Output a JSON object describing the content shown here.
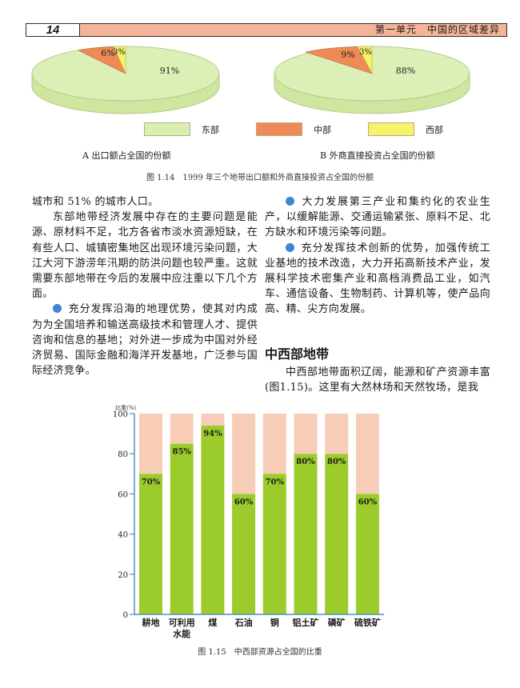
{
  "header": {
    "page_number": "14",
    "unit_title": "第一单元　中国的区域差异"
  },
  "figure_1_14": {
    "legend": [
      {
        "label": "东部",
        "color": "#d9efb0"
      },
      {
        "label": "中部",
        "color": "#ee8a55"
      },
      {
        "label": "西部",
        "color": "#f6f26a"
      }
    ],
    "caption_a": "A 出口额占全国的份额",
    "caption_b": "B 外商直接投资占全国的份额",
    "caption": "图 1.14　1999 年三个地带出口额和外商直接投资占全国的份额"
  },
  "chart_data": [
    {
      "type": "pie",
      "title": "A 出口额占全国的份额",
      "categories": [
        "东部",
        "中部",
        "西部"
      ],
      "values": [
        91,
        6,
        3
      ],
      "labels": [
        "91%",
        "6%",
        "3%"
      ]
    },
    {
      "type": "pie",
      "title": "B 外商直接投资占全国的份额",
      "categories": [
        "东部",
        "中部",
        "西部"
      ],
      "values": [
        88,
        9,
        3
      ],
      "labels": [
        "88%",
        "9%",
        "3%"
      ]
    },
    {
      "type": "bar",
      "title": "图 1.15　中西部资源占全国的比重",
      "ylabel": "比重(%)",
      "xlabel": "",
      "ylim": [
        0,
        100
      ],
      "yticks": [
        0,
        20,
        40,
        60,
        80,
        100
      ],
      "categories": [
        "耕地",
        "可利用水能",
        "煤",
        "石油",
        "铜",
        "铝土矿",
        "磷矿",
        "硫铁矿"
      ],
      "category_lines": [
        [
          "耕地"
        ],
        [
          "可利用",
          "水能"
        ],
        [
          "煤"
        ],
        [
          "石油"
        ],
        [
          "铜"
        ],
        [
          "铝土矿"
        ],
        [
          "磷矿"
        ],
        [
          "硫铁矿"
        ]
      ],
      "values": [
        70,
        85,
        94,
        60,
        70,
        80,
        80,
        60
      ],
      "labels": [
        "70%",
        "85%",
        "94%",
        "60%",
        "70%",
        "80%",
        "80%",
        "60%"
      ],
      "colors": {
        "value": "#9ccc2c",
        "remainder": "#f8cdb8",
        "axis": "#4a90c8"
      },
      "grid": false,
      "stacked_to": 100
    }
  ],
  "left_column": {
    "line0": "城市和 51% 的城市人口。",
    "para1": "东部地带经济发展中存在的主要问题是能源、原材料不足，北方各省市淡水资源短缺，在有些人口、城镇密集地区出现环境污染问题，大江大河下游涝年汛期的防洪问题也较严重。这就需要东部地带在今后的发展中应注重以下几个方面。",
    "bullet1": "充分发挥沿海的地理优势，使其对内成为为全国培养和输送高级技术和管理人才、提供咨询和信息的基地；对外进一步成为中国对外经济贸易、国际金融和海洋开发基地，广泛参与国际经济竞争。"
  },
  "right_column": {
    "bullet2": "大力发展第三产业和集约化的农业生产，以缓解能源、交通运输紧张、原料不足、北方缺水和环境污染等问题。",
    "bullet3": "充分发挥技术创新的优势，加强传统工业基地的技术改造，大力开拓高新技术产业，发展科学技术密集产业和高档消费品工业，如汽车、通信设备、生物制药、计算机等，使产品向高、精、尖方向发展。",
    "section_title": "中西部地带",
    "para2": "中西部地带面积辽阔，能源和矿产资源丰富(图1.15)。这里有大然林场和天然牧场，是我"
  },
  "figure_1_15": {
    "caption": "图 1.15　中西部资源占全国的比重"
  }
}
